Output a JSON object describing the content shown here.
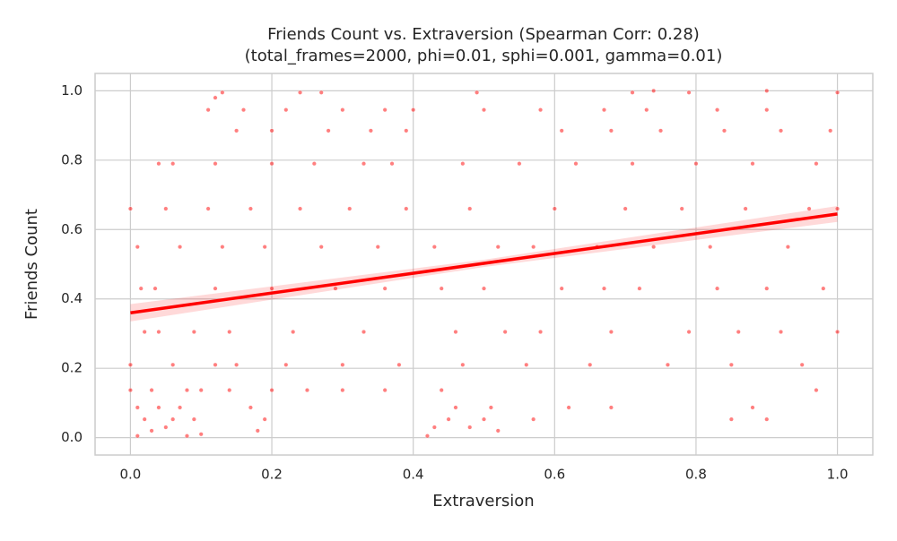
{
  "chart_data": {
    "type": "scatter",
    "title": "Friends Count vs. Extraversion (Spearman Corr: 0.28)",
    "subtitle": "(total_frames=2000, phi=0.01, sphi=0.001, gamma=0.01)",
    "x_label": "Extraversion",
    "y_label": "Friends Count",
    "xlim": [
      -0.05,
      1.05
    ],
    "ylim": [
      -0.05,
      1.05
    ],
    "xticks": [
      {
        "value": 0,
        "label": "0.0"
      },
      0.2,
      0.4,
      0.6,
      0.8,
      {
        "value": 1,
        "label": "1.0"
      }
    ],
    "yticks": [
      {
        "value": 0,
        "label": "0.0"
      },
      0.2,
      0.4,
      0.6,
      0.8,
      {
        "value": 1,
        "label": "1.0"
      }
    ],
    "grid": true,
    "series": [
      {
        "color": "#ff0000",
        "x": [
          0.01,
          0.03,
          0.05,
          0.08,
          0.1,
          0.02,
          0.06,
          0.09,
          0.01,
          0.04,
          0.07,
          0.0,
          0.03,
          0.08,
          0.1,
          0.0,
          0.06,
          0.12,
          0.02,
          0.04,
          0.09,
          0.015,
          0.035,
          0.01,
          0.07,
          0.0,
          0.05,
          0.04,
          0.06,
          0.18,
          0.19,
          0.17,
          0.14,
          0.2,
          0.25,
          0.3,
          0.36,
          0.15,
          0.22,
          0.3,
          0.38,
          0.47,
          0.56,
          0.65,
          0.76,
          0.85,
          0.95,
          0.14,
          0.23,
          0.33,
          0.46,
          0.53,
          0.58,
          0.68,
          0.79,
          0.86,
          0.92,
          1.0,
          0.12,
          0.2,
          0.29,
          0.36,
          0.44,
          0.5,
          0.61,
          0.67,
          0.72,
          0.83,
          0.9,
          0.98,
          0.13,
          0.19,
          0.27,
          0.35,
          0.43,
          0.52,
          0.57,
          0.66,
          0.74,
          0.82,
          0.93,
          0.11,
          0.17,
          0.24,
          0.31,
          0.39,
          0.48,
          0.6,
          0.7,
          0.78,
          0.87,
          0.96,
          1.0,
          0.12,
          0.2,
          0.26,
          0.33,
          0.37,
          0.47,
          0.55,
          0.63,
          0.71,
          0.8,
          0.88,
          0.97,
          0.15,
          0.2,
          0.28,
          0.34,
          0.39,
          0.61,
          0.68,
          0.75,
          0.84,
          0.92,
          0.99,
          0.11,
          0.16,
          0.22,
          0.3,
          0.36,
          0.4,
          0.5,
          0.58,
          0.67,
          0.73,
          0.83,
          0.9,
          0.12,
          0.13,
          0.24,
          0.27,
          0.49,
          0.71,
          0.74,
          0.79,
          0.9,
          1.0,
          0.42,
          0.43,
          0.45,
          0.48,
          0.5,
          0.52,
          0.46,
          0.51,
          0.44,
          0.57,
          0.62,
          0.68,
          0.85,
          0.88,
          0.9,
          0.97
        ],
        "values": [
          0.005,
          0.02,
          0.03,
          0.005,
          0.01,
          0.053,
          0.053,
          0.053,
          0.087,
          0.087,
          0.087,
          0.137,
          0.137,
          0.137,
          0.137,
          0.21,
          0.21,
          0.21,
          0.305,
          0.305,
          0.305,
          0.43,
          0.43,
          0.55,
          0.55,
          0.66,
          0.66,
          0.79,
          0.79,
          0.02,
          0.053,
          0.087,
          0.137,
          0.137,
          0.137,
          0.137,
          0.137,
          0.21,
          0.21,
          0.21,
          0.21,
          0.21,
          0.21,
          0.21,
          0.21,
          0.21,
          0.21,
          0.305,
          0.305,
          0.305,
          0.305,
          0.305,
          0.305,
          0.305,
          0.305,
          0.305,
          0.305,
          0.305,
          0.43,
          0.43,
          0.43,
          0.43,
          0.43,
          0.43,
          0.43,
          0.43,
          0.43,
          0.43,
          0.43,
          0.43,
          0.55,
          0.55,
          0.55,
          0.55,
          0.55,
          0.55,
          0.55,
          0.55,
          0.55,
          0.55,
          0.55,
          0.66,
          0.66,
          0.66,
          0.66,
          0.66,
          0.66,
          0.66,
          0.66,
          0.66,
          0.66,
          0.66,
          0.66,
          0.79,
          0.79,
          0.79,
          0.79,
          0.79,
          0.79,
          0.79,
          0.79,
          0.79,
          0.79,
          0.79,
          0.79,
          0.885,
          0.885,
          0.885,
          0.885,
          0.885,
          0.885,
          0.885,
          0.885,
          0.885,
          0.885,
          0.885,
          0.945,
          0.945,
          0.945,
          0.945,
          0.945,
          0.945,
          0.945,
          0.945,
          0.945,
          0.945,
          0.945,
          0.945,
          0.98,
          0.995,
          0.995,
          0.995,
          0.995,
          0.995,
          1.0,
          0.995,
          1.0,
          0.995,
          0.005,
          0.03,
          0.053,
          0.03,
          0.053,
          0.02,
          0.087,
          0.087,
          0.137,
          0.053,
          0.087,
          0.087,
          0.053,
          0.087,
          0.053,
          0.137
        ]
      }
    ],
    "regression": {
      "color": "#ff0000",
      "x": [
        0,
        0.5,
        1
      ],
      "values": [
        0.36,
        0.5025,
        0.645
      ],
      "ci_lower": [
        0.335,
        0.492,
        0.622
      ],
      "ci_upper": [
        0.385,
        0.513,
        0.668
      ]
    }
  }
}
